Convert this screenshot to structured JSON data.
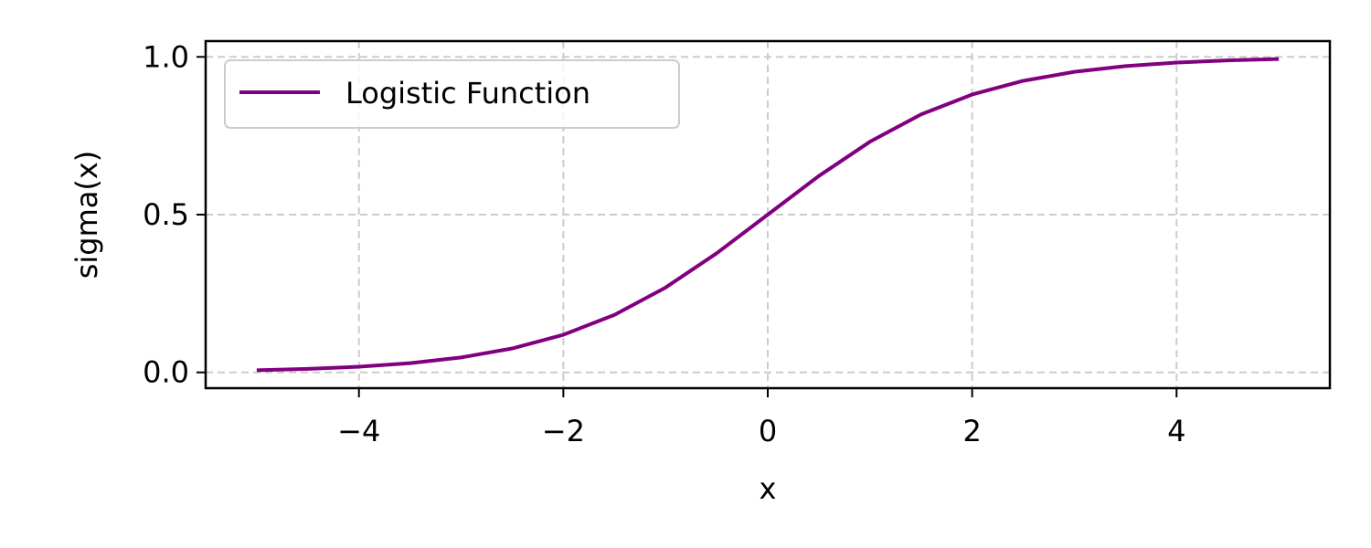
{
  "chart_data": {
    "type": "line",
    "title": "",
    "xlabel": "x",
    "ylabel": "sigma(x)",
    "xlim": [
      -5.5,
      5.5
    ],
    "ylim": [
      -0.05,
      1.05
    ],
    "x_ticks": [
      -4,
      -2,
      0,
      2,
      4
    ],
    "x_tick_labels": [
      "−4",
      "−2",
      "0",
      "2",
      "4"
    ],
    "y_ticks": [
      0.0,
      0.5,
      1.0
    ],
    "y_tick_labels": [
      "0.0",
      "0.5",
      "1.0"
    ],
    "grid": true,
    "grid_style": "dashed",
    "legend_position": "top-left",
    "series": [
      {
        "name": "Logistic Function",
        "color": "#800080",
        "x": [
          -5,
          -4.5,
          -4,
          -3.5,
          -3,
          -2.5,
          -2,
          -1.5,
          -1,
          -0.5,
          0,
          0.5,
          1,
          1.5,
          2,
          2.5,
          3,
          3.5,
          4,
          4.5,
          5
        ],
        "y": [
          0.0067,
          0.011,
          0.018,
          0.0293,
          0.0474,
          0.0759,
          0.1192,
          0.1824,
          0.2689,
          0.3775,
          0.5,
          0.6225,
          0.7311,
          0.8176,
          0.8808,
          0.9241,
          0.9526,
          0.9707,
          0.982,
          0.989,
          0.9933
        ]
      }
    ]
  }
}
